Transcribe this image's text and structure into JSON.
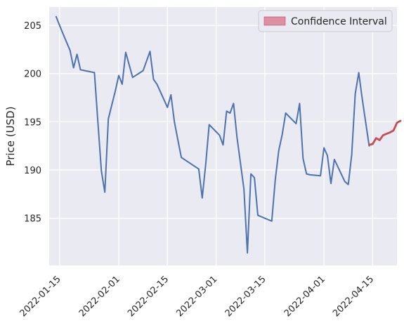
{
  "chart_data": {
    "type": "line",
    "title": "",
    "xlabel": "",
    "ylabel": "Price (USD)",
    "ylim": [
      180.1,
      206.9
    ],
    "xlim": [
      "2022-01-12",
      "2022-04-22"
    ],
    "grid": true,
    "legend_position": "top-right",
    "y_ticks": [
      185,
      190,
      195,
      200,
      205
    ],
    "x_ticks": [
      "2022-01-15",
      "2022-02-01",
      "2022-02-15",
      "2022-03-01",
      "2022-03-15",
      "2022-04-01",
      "2022-04-15"
    ],
    "series": [
      {
        "color": "#4c72b0",
        "points": [
          [
            "2022-01-14",
            205.9
          ],
          [
            "2022-01-15",
            205.0
          ],
          [
            "2022-01-16",
            204.1
          ],
          [
            "2022-01-18",
            202.4
          ],
          [
            "2022-01-19",
            200.6
          ],
          [
            "2022-01-20",
            202.0
          ],
          [
            "2022-01-21",
            200.4
          ],
          [
            "2022-01-25",
            200.1
          ],
          [
            "2022-01-26",
            195.0
          ],
          [
            "2022-01-27",
            189.9
          ],
          [
            "2022-01-28",
            187.7
          ],
          [
            "2022-01-29",
            195.3
          ],
          [
            "2022-01-31",
            198.2
          ],
          [
            "2022-02-01",
            199.8
          ],
          [
            "2022-02-02",
            198.9
          ],
          [
            "2022-02-03",
            202.2
          ],
          [
            "2022-02-05",
            199.6
          ],
          [
            "2022-02-08",
            200.3
          ],
          [
            "2022-02-10",
            202.3
          ],
          [
            "2022-02-11",
            199.4
          ],
          [
            "2022-02-12",
            198.9
          ],
          [
            "2022-02-15",
            196.5
          ],
          [
            "2022-02-16",
            197.8
          ],
          [
            "2022-02-17",
            195.0
          ],
          [
            "2022-02-18",
            193.1
          ],
          [
            "2022-02-19",
            191.3
          ],
          [
            "2022-02-24",
            190.1
          ],
          [
            "2022-02-25",
            187.1
          ],
          [
            "2022-02-26",
            190.6
          ],
          [
            "2022-02-27",
            194.7
          ],
          [
            "2022-03-02",
            193.6
          ],
          [
            "2022-03-03",
            192.6
          ],
          [
            "2022-03-04",
            196.1
          ],
          [
            "2022-03-05",
            195.9
          ],
          [
            "2022-03-06",
            196.9
          ],
          [
            "2022-03-07",
            193.4
          ],
          [
            "2022-03-09",
            188.0
          ],
          [
            "2022-03-10",
            181.4
          ],
          [
            "2022-03-11",
            189.6
          ],
          [
            "2022-03-12",
            189.2
          ],
          [
            "2022-03-13",
            185.3
          ],
          [
            "2022-03-17",
            184.7
          ],
          [
            "2022-03-18",
            189.0
          ],
          [
            "2022-03-19",
            192.0
          ],
          [
            "2022-03-20",
            193.7
          ],
          [
            "2022-03-21",
            195.9
          ],
          [
            "2022-03-24",
            194.8
          ],
          [
            "2022-03-25",
            196.9
          ],
          [
            "2022-03-26",
            191.2
          ],
          [
            "2022-03-27",
            189.6
          ],
          [
            "2022-03-28",
            189.5
          ],
          [
            "2022-03-31",
            189.4
          ],
          [
            "2022-04-01",
            192.3
          ],
          [
            "2022-04-02",
            191.5
          ],
          [
            "2022-04-03",
            188.6
          ],
          [
            "2022-04-04",
            191.1
          ],
          [
            "2022-04-07",
            188.8
          ],
          [
            "2022-04-08",
            188.5
          ],
          [
            "2022-04-09",
            191.6
          ],
          [
            "2022-04-10",
            197.9
          ],
          [
            "2022-04-11",
            200.1
          ],
          [
            "2022-04-12",
            197.4
          ],
          [
            "2022-04-14",
            192.5
          ]
        ]
      },
      {
        "color": "#c44e52",
        "points": [
          [
            "2022-04-14",
            192.6
          ],
          [
            "2022-04-15",
            192.7
          ],
          [
            "2022-04-16",
            193.3
          ],
          [
            "2022-04-17",
            193.1
          ],
          [
            "2022-04-18",
            193.6
          ],
          [
            "2022-04-20",
            193.9
          ],
          [
            "2022-04-21",
            194.1
          ],
          [
            "2022-04-22",
            194.9
          ],
          [
            "2022-04-23",
            195.1
          ]
        ]
      }
    ],
    "legend": {
      "entries": [
        {
          "label": "Confidence Interval",
          "swatch_color": "#dd8fa4"
        }
      ]
    }
  }
}
